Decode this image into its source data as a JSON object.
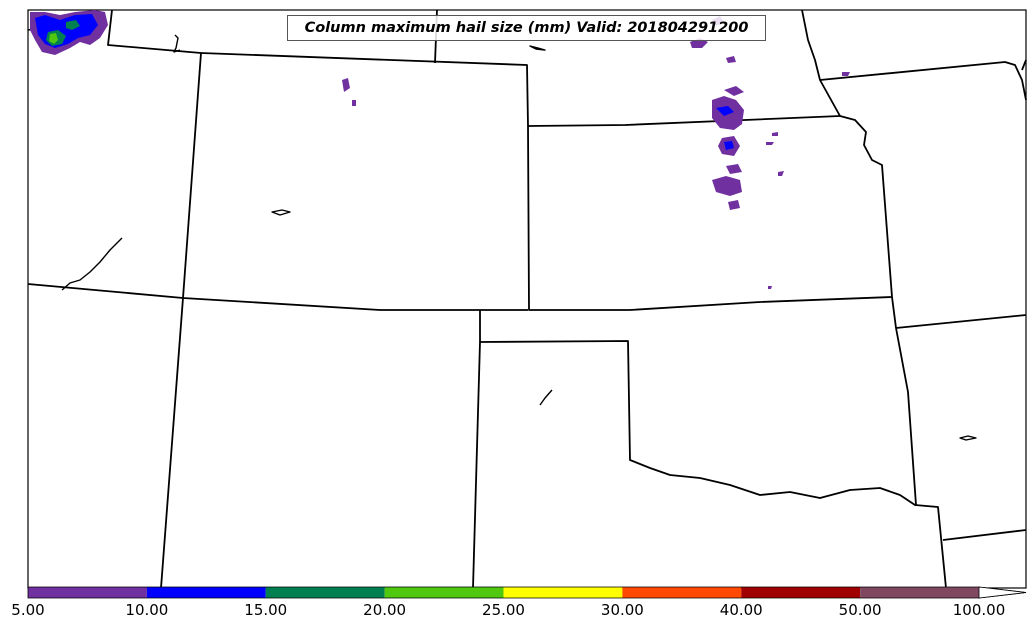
{
  "title": "Column maximum hail size (mm) Valid: 201804291200",
  "colorbar": {
    "bins": [
      {
        "from": "5.00",
        "to": "10.00",
        "color": "#7030a0"
      },
      {
        "from": "10.00",
        "to": "15.00",
        "color": "#0000ff"
      },
      {
        "from": "15.00",
        "to": "20.00",
        "color": "#008050"
      },
      {
        "from": "20.00",
        "to": "25.00",
        "color": "#50c810"
      },
      {
        "from": "25.00",
        "to": "30.00",
        "color": "#ffff00"
      },
      {
        "from": "30.00",
        "to": "40.00",
        "color": "#ff4800"
      },
      {
        "from": "40.00",
        "to": "50.00",
        "color": "#a00000"
      },
      {
        "from": "50.00",
        "to": "100.00",
        "color": "#804860"
      }
    ],
    "labels": [
      "5.00",
      "10.00",
      "15.00",
      "20.00",
      "25.00",
      "30.00",
      "40.00",
      "50.00",
      "100.00"
    ],
    "extend": "max"
  }
}
